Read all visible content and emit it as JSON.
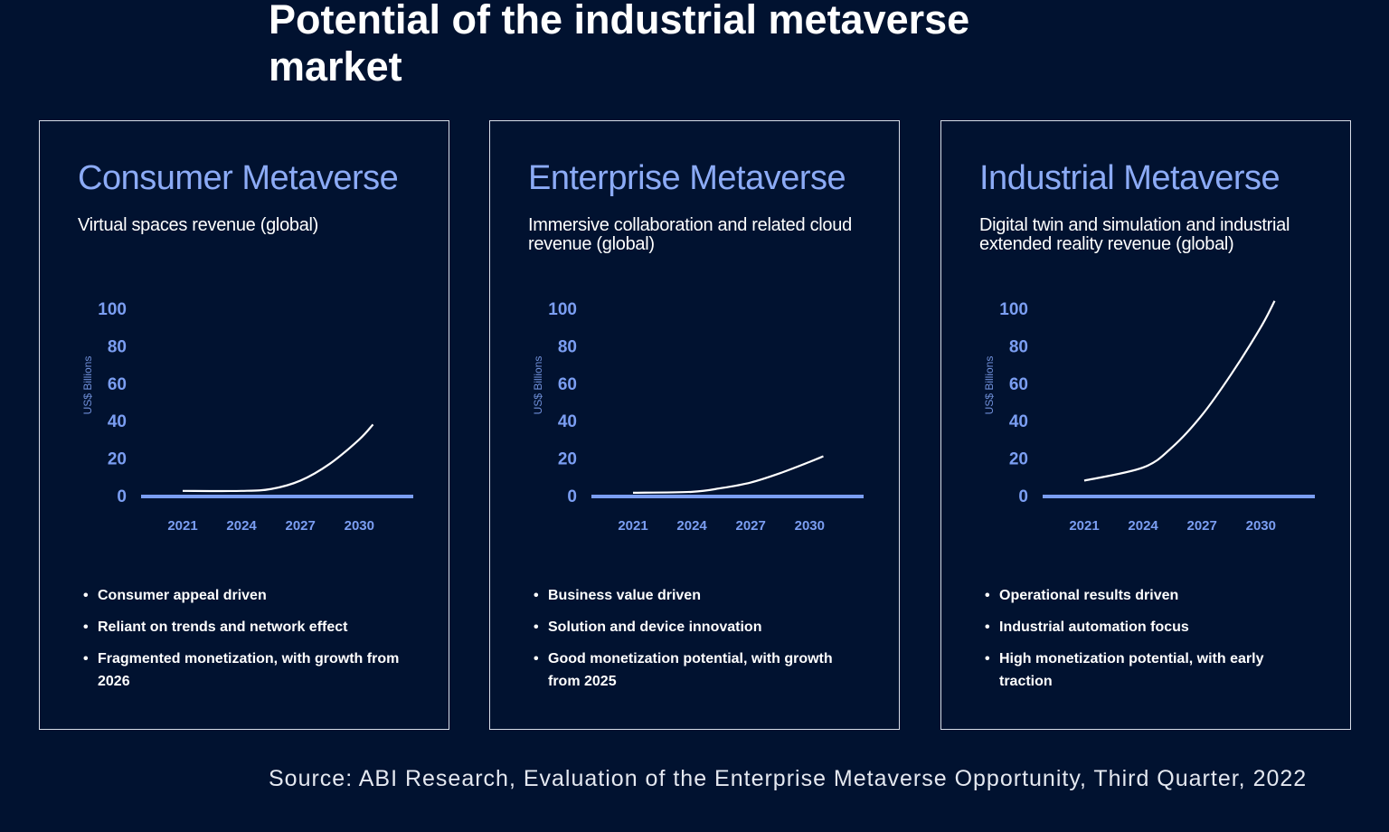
{
  "title": "Potential of the industrial metaverse market",
  "source": "Source: ABI Research, Evaluation of the Enterprise Metaverse Opportunity, Third Quarter, 2022",
  "colors": {
    "background": "#011230",
    "accent": "#8cabf6",
    "axis": "#7b9ef2",
    "curve": "#ffffff"
  },
  "chart_data": [
    {
      "type": "line",
      "title": "Consumer Metaverse",
      "subtitle": "Virtual spaces revenue (global)",
      "ylabel": "US$ Billions",
      "ylim": [
        0,
        100
      ],
      "yticks": [
        "0",
        "20",
        "40",
        "60",
        "80",
        "100"
      ],
      "xticks": [
        "2021",
        "2024",
        "2027",
        "2030"
      ],
      "grid": false,
      "x": [
        2021,
        2024,
        2025.5,
        2027,
        2028.5,
        2030,
        2030.7
      ],
      "values": [
        2.5,
        2.5,
        3.5,
        8,
        17,
        30,
        38
      ],
      "bullets": [
        "Consumer appeal driven",
        "Reliant on trends and network effect",
        "Fragmented monetization, with growth from 2026"
      ]
    },
    {
      "type": "line",
      "title": "Enterprise Metaverse",
      "subtitle": "Immersive collaboration and related cloud revenue (global)",
      "ylabel": "US$ Billions",
      "ylim": [
        0,
        100
      ],
      "yticks": [
        "0",
        "20",
        "40",
        "60",
        "80",
        "100"
      ],
      "xticks": [
        "2021",
        "2024",
        "2027",
        "2030"
      ],
      "grid": false,
      "x": [
        2021,
        2024,
        2025.5,
        2027,
        2028.5,
        2030,
        2030.7
      ],
      "values": [
        1.5,
        2,
        4,
        7,
        12,
        18,
        21
      ],
      "bullets": [
        "Business value driven",
        "Solution and device innovation",
        "Good monetization potential, with growth from 2025"
      ]
    },
    {
      "type": "line",
      "title": "Industrial Metaverse",
      "subtitle": "Digital twin and simulation and industrial extended reality revenue (global)",
      "ylabel": "US$ Billions",
      "ylim": [
        0,
        100
      ],
      "yticks": [
        "0",
        "20",
        "40",
        "60",
        "80",
        "100"
      ],
      "xticks": [
        "2021",
        "2024",
        "2027",
        "2030"
      ],
      "grid": false,
      "x": [
        2021,
        2024,
        2025.5,
        2027,
        2028.5,
        2030,
        2030.7
      ],
      "values": [
        8,
        15,
        26,
        43,
        65,
        90,
        104
      ],
      "bullets": [
        "Operational results driven",
        "Industrial automation focus",
        "High monetization potential, with early traction"
      ]
    }
  ]
}
